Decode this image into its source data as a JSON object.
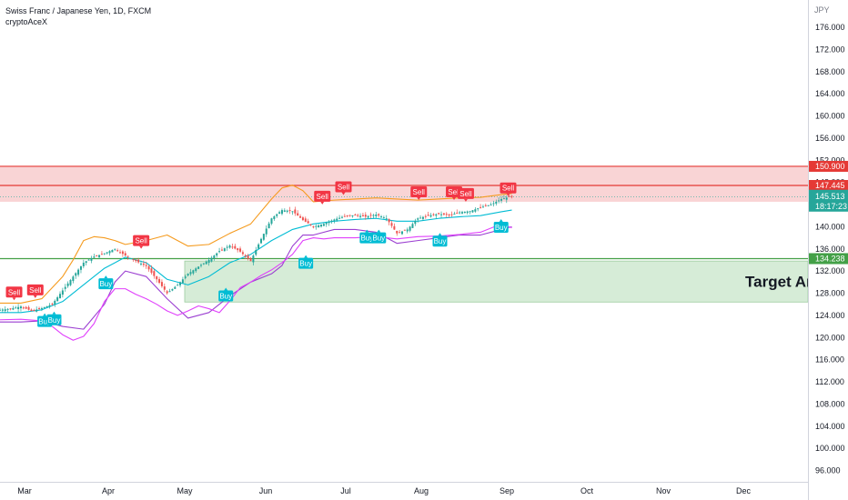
{
  "header": {
    "symbol_line": "Swiss Franc / Japanese Yen, 1D, FXCM",
    "author": "cryptoAceX",
    "currency": "JPY"
  },
  "chart_data": {
    "type": "candlestick",
    "title": "Swiss Franc / Japanese Yen, 1D, FXCM",
    "ylabel": "JPY",
    "ylim": [
      94,
      178
    ],
    "y_ticks": [
      "96.000",
      "100.000",
      "104.000",
      "108.000",
      "112.000",
      "116.000",
      "120.000",
      "124.000",
      "128.000",
      "132.000",
      "136.000",
      "140.000",
      "144.000",
      "148.000",
      "152.000",
      "156.000",
      "160.000",
      "164.000",
      "168.000",
      "172.000",
      "176.000"
    ],
    "x_ticks": [
      "Mar",
      "Apr",
      "May",
      "Jun",
      "Jul",
      "Aug",
      "Sep",
      "Oct",
      "Nov",
      "Dec"
    ],
    "price": {
      "x": [
        0,
        4,
        8,
        12,
        16,
        20,
        24,
        28,
        32,
        36,
        40,
        44,
        48,
        52,
        56,
        60,
        64,
        68,
        72,
        76,
        80,
        84,
        88,
        92,
        96,
        100,
        104,
        108,
        112,
        116,
        120,
        124,
        128,
        132,
        136,
        140,
        144,
        148,
        152,
        156,
        160,
        164,
        168,
        172,
        176,
        180,
        184,
        188,
        192,
        196
      ],
      "y": [
        125.0,
        125.2,
        125.6,
        124.8,
        125.3,
        126.0,
        128.5,
        131.0,
        133.5,
        134.6,
        135.2,
        136.0,
        134.8,
        133.8,
        132.9,
        130.5,
        128.0,
        129.5,
        131.5,
        132.8,
        134.0,
        135.6,
        136.6,
        135.5,
        133.8,
        137.8,
        141.5,
        143.0,
        142.8,
        141.2,
        140.0,
        140.5,
        141.3,
        141.9,
        142.1,
        141.8,
        142.2,
        141.5,
        138.8,
        139.5,
        141.5,
        142.0,
        142.3,
        142.1,
        142.6,
        142.8,
        143.5,
        144.0,
        145.0,
        145.5
      ]
    },
    "bollinger_mid": {
      "x": [
        0,
        8,
        16,
        24,
        32,
        40,
        48,
        56,
        64,
        72,
        80,
        88,
        96,
        104,
        112,
        120,
        128,
        136,
        144,
        152,
        160,
        168,
        176,
        184,
        192,
        196
      ],
      "y": [
        124.5,
        124.5,
        125.0,
        126.5,
        129.5,
        132.5,
        134.5,
        133.5,
        130.5,
        129.5,
        131.0,
        133.5,
        135.0,
        137.5,
        139.5,
        140.5,
        141.0,
        141.3,
        141.5,
        141.0,
        141.0,
        141.5,
        141.8,
        142.0,
        142.7,
        143.0
      ]
    },
    "bollinger_upper": {
      "x": [
        0,
        8,
        16,
        24,
        28,
        32,
        36,
        40,
        44,
        48,
        56,
        64,
        72,
        80,
        88,
        96,
        104,
        108,
        112,
        116,
        120,
        128,
        136,
        144,
        152,
        160,
        168,
        176,
        184,
        192,
        196
      ],
      "y": [
        126.2,
        126.2,
        127.0,
        131.0,
        134.0,
        137.5,
        138.2,
        138.0,
        137.5,
        136.8,
        137.5,
        138.5,
        136.5,
        136.8,
        138.8,
        140.5,
        145.0,
        147.0,
        147.5,
        146.5,
        144.5,
        144.8,
        145.0,
        145.2,
        145.0,
        144.8,
        145.0,
        145.2,
        145.3,
        145.8,
        146.0
      ]
    },
    "bollinger_lower": {
      "x": [
        0,
        8,
        16,
        24,
        32,
        40,
        44,
        48,
        56,
        64,
        72,
        80,
        88,
        96,
        104,
        108,
        112,
        116,
        120,
        128,
        136,
        144,
        152,
        160,
        168,
        176,
        184,
        192,
        196
      ],
      "y": [
        122.8,
        122.8,
        123.0,
        122.0,
        121.5,
        126.0,
        130.0,
        132.0,
        131.0,
        127.0,
        123.5,
        124.5,
        127.5,
        130.0,
        131.5,
        133.0,
        136.5,
        138.5,
        138.5,
        139.5,
        139.5,
        139.0,
        137.0,
        137.5,
        138.0,
        138.5,
        138.5,
        139.5,
        140.0
      ]
    },
    "keltner_lower": {
      "x": [
        0,
        8,
        16,
        20,
        24,
        28,
        32,
        36,
        40,
        44,
        48,
        52,
        56,
        60,
        64,
        68,
        72,
        76,
        80,
        84,
        88,
        92,
        96,
        100,
        104,
        108,
        112,
        116,
        120,
        124,
        128,
        136,
        144,
        152,
        160,
        168,
        176,
        184,
        192,
        196
      ],
      "y": [
        123.2,
        123.3,
        123.0,
        122.0,
        120.5,
        119.5,
        120.2,
        122.5,
        126.5,
        128.8,
        128.8,
        127.8,
        127.0,
        126.0,
        124.8,
        124.0,
        124.8,
        125.7,
        125.2,
        124.5,
        126.6,
        129.0,
        130.0,
        131.2,
        132.2,
        133.5,
        135.0,
        137.5,
        138.0,
        137.8,
        138.0,
        138.0,
        138.2,
        137.8,
        138.2,
        138.3,
        138.6,
        139.0,
        140.5,
        139.8
      ]
    },
    "levels": [
      {
        "price": 150.9,
        "label": "150.900",
        "color": "#e53935"
      },
      {
        "price": 147.445,
        "label": "147.445",
        "color": "#e53935"
      },
      {
        "price": 145.513,
        "label": "145.513",
        "color": "#26a69a",
        "countdown": "18:17:23"
      },
      {
        "price": 134.238,
        "label": "134.238",
        "color": "#43a047"
      }
    ],
    "resistance_zone": {
      "from": 144.5,
      "to": 150.9
    },
    "target_zone": {
      "from": 126.4,
      "to": 133.8,
      "label": "Target Area"
    },
    "signals": [
      {
        "type": "Sell",
        "x": 6,
        "price": 128.2
      },
      {
        "type": "Sell",
        "x": 15,
        "price": 128.6
      },
      {
        "type": "Buy",
        "x": 19,
        "price": 122.9
      },
      {
        "type": "Buy",
        "x": 23,
        "price": 123.2
      },
      {
        "type": "Buy",
        "x": 45,
        "price": 129.7
      },
      {
        "type": "Sell",
        "x": 60,
        "price": 137.5
      },
      {
        "type": "Buy",
        "x": 96,
        "price": 127.5
      },
      {
        "type": "Buy",
        "x": 130,
        "price": 133.4
      },
      {
        "type": "Sell",
        "x": 137,
        "price": 145.5
      },
      {
        "type": "Sell",
        "x": 146,
        "price": 147.2
      },
      {
        "type": "Buy",
        "x": 156,
        "price": 138.0
      },
      {
        "type": "Buy",
        "x": 161,
        "price": 138.0
      },
      {
        "type": "Sell",
        "x": 178,
        "price": 146.3
      },
      {
        "type": "Buy",
        "x": 187,
        "price": 137.4
      },
      {
        "type": "Sell",
        "x": 193,
        "price": 146.3
      },
      {
        "type": "Sell",
        "x": 198,
        "price": 146.0
      },
      {
        "type": "Buy",
        "x": 213,
        "price": 139.9
      },
      {
        "type": "Sell",
        "x": 216,
        "price": 147.0
      }
    ],
    "grid": false,
    "legend": "none"
  }
}
